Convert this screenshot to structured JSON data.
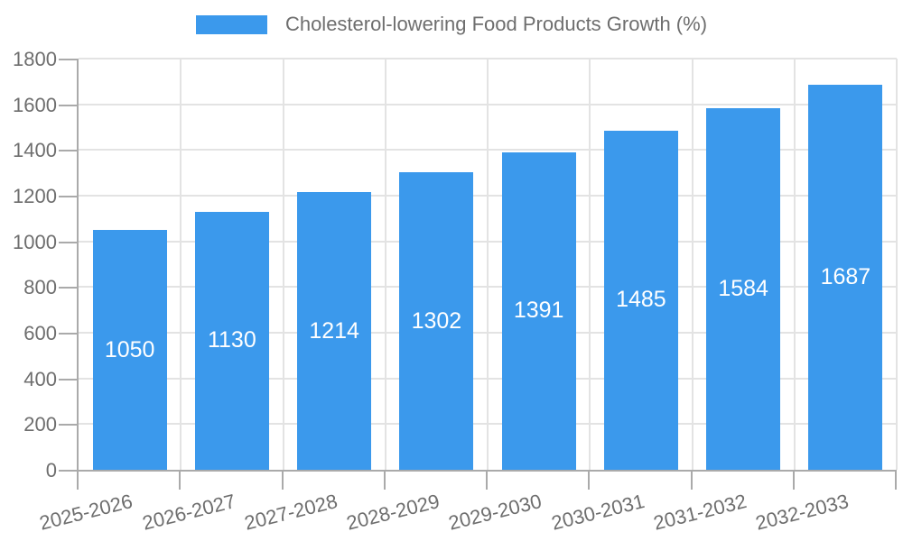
{
  "legend": {
    "label": "Cholesterol-lowering Food Products Growth (%)"
  },
  "chart_data": {
    "type": "bar",
    "title": "Cholesterol-lowering Food Products Growth (%)",
    "series_name": "Cholesterol-lowering Food Products Growth (%)",
    "categories": [
      "2025-2026",
      "2026-2027",
      "2027-2028",
      "2028-2029",
      "2029-2030",
      "2030-2031",
      "2031-2032",
      "2032-2033"
    ],
    "values": [
      1050,
      1130,
      1214,
      1302,
      1391,
      1485,
      1584,
      1687
    ],
    "value_labels": [
      "1050",
      "1130",
      "1214",
      "1302",
      "1391",
      "1485",
      "1584",
      "1687"
    ],
    "xlabel": "",
    "ylabel": "",
    "ylim": [
      0,
      1800
    ],
    "yticks": [
      0,
      200,
      400,
      600,
      800,
      1000,
      1200,
      1400,
      1600,
      1800
    ],
    "ytick_labels": [
      "0",
      "200",
      "400",
      "600",
      "800",
      "1000",
      "1200",
      "1400",
      "1600",
      "1800"
    ],
    "grid": true,
    "legend_position": "top",
    "x_label_rotation_deg": -14,
    "colors": {
      "bar": "#3b99ec",
      "value_label": "#ffffff",
      "axis_text": "#6e6e6e",
      "axis_line": "#aaaaaa",
      "gridline": "#e3e3e3",
      "background": "#ffffff"
    }
  }
}
